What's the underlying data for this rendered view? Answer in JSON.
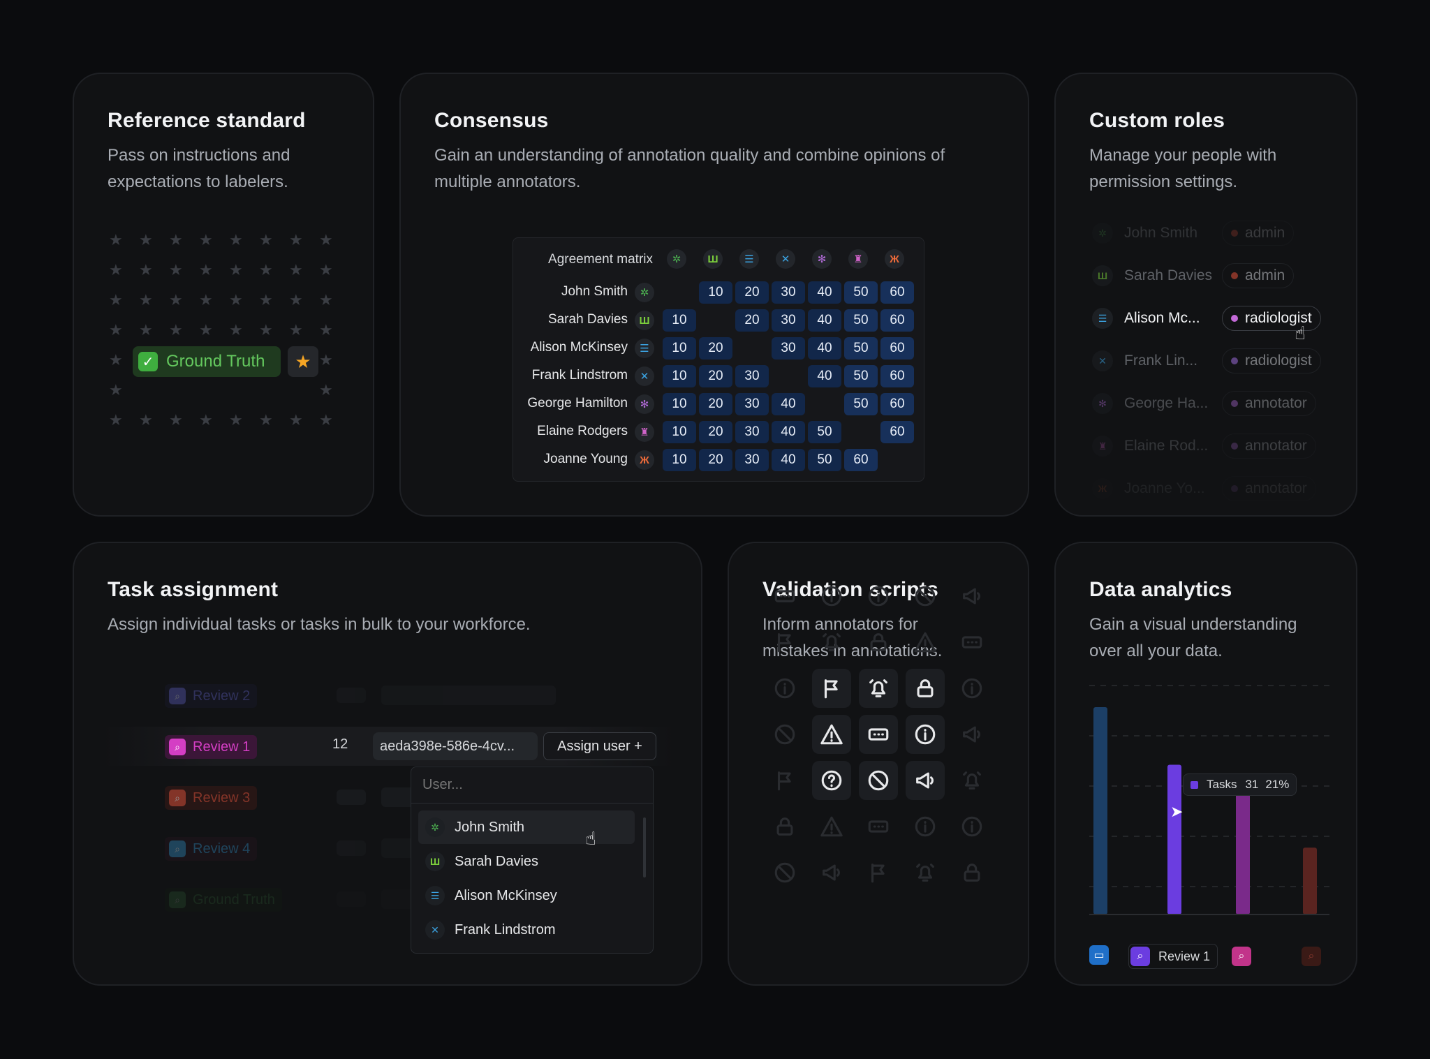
{
  "cards": {
    "reference": {
      "title": "Reference standard",
      "desc_line1": "Pass on instructions and",
      "desc_line2": "expectations to labelers.",
      "ground_truth_label": "Ground Truth"
    },
    "consensus": {
      "title": "Consensus",
      "desc_line1": "Gain an understanding of annotation quality and combine opinions of",
      "desc_line2": "multiple annotators.",
      "matrix_title": "Agreement matrix",
      "rows": [
        {
          "name": "John Smith",
          "color": "#4caf50",
          "glyph": "✲",
          "values": [
            "",
            "10",
            "20",
            "30",
            "40",
            "50",
            "60"
          ]
        },
        {
          "name": "Sarah Davies",
          "color": "#7ccf3c",
          "glyph": "Ш",
          "values": [
            "10",
            "",
            "20",
            "30",
            "40",
            "50",
            "60"
          ]
        },
        {
          "name": "Alison McKinsey",
          "color": "#3ba2e0",
          "glyph": "☰",
          "values": [
            "10",
            "20",
            "",
            "30",
            "40",
            "50",
            "60"
          ]
        },
        {
          "name": "Frank Lindstrom",
          "color": "#3ba2e0",
          "glyph": "✕",
          "values": [
            "10",
            "20",
            "30",
            "",
            "40",
            "50",
            "60"
          ]
        },
        {
          "name": "George Hamilton",
          "color": "#b06ad6",
          "glyph": "✻",
          "values": [
            "10",
            "20",
            "30",
            "40",
            "",
            "50",
            "60"
          ]
        },
        {
          "name": "Elaine Rodgers",
          "color": "#cf63c8",
          "glyph": "♜",
          "values": [
            "10",
            "20",
            "30",
            "40",
            "50",
            "",
            "60"
          ]
        },
        {
          "name": "Joanne Young",
          "color": "#ef6b3a",
          "glyph": "Ж",
          "values": [
            "10",
            "20",
            "30",
            "40",
            "50",
            "60",
            ""
          ]
        }
      ]
    },
    "roles": {
      "title": "Custom roles",
      "desc_line1": "Manage your people with",
      "desc_line2": "permission settings.",
      "rows": [
        {
          "name": "John Smith",
          "role": "admin",
          "dot": "#e0503a",
          "icon_color": "#4caf50",
          "glyph": "✲"
        },
        {
          "name": "Sarah Davies",
          "role": "admin",
          "dot": "#e0503a",
          "icon_color": "#7ccf3c",
          "glyph": "Ш"
        },
        {
          "name": "Alison Mc...",
          "role": "radiologist",
          "dot": "#c46ad8",
          "icon_color": "#3ba2e0",
          "glyph": "☰"
        },
        {
          "name": "Frank Lin...",
          "role": "radiologist",
          "dot": "#9a6ad8",
          "icon_color": "#3ba2e0",
          "glyph": "✕"
        },
        {
          "name": "George Ha...",
          "role": "annotator",
          "dot": "#b06ad6",
          "icon_color": "#b06ad6",
          "glyph": "✻"
        },
        {
          "name": "Elaine Rod...",
          "role": "annotator",
          "dot": "#b06ad6",
          "icon_color": "#cf63c8",
          "glyph": "♜"
        },
        {
          "name": "Joanne Yo...",
          "role": "annotator",
          "dot": "#b06ad6",
          "icon_color": "#ef6b3a",
          "glyph": "Ж"
        }
      ]
    },
    "tasks": {
      "title": "Task assignment",
      "desc": "Assign individual tasks or tasks in bulk to your workforce.",
      "rows": [
        {
          "label": "Review 2",
          "color": "#6a6ddf",
          "bg": "#1b1c33"
        },
        {
          "label": "Review 1",
          "color": "#d43ec4",
          "bg": "#3b1638"
        },
        {
          "label": "Review 3",
          "color": "#e0503a",
          "bg": "#3a1a16"
        },
        {
          "label": "Review 4",
          "color": "#3ba2e0",
          "bg": "#2a1620"
        },
        {
          "label": "Ground Truth",
          "color": "#4caf50",
          "bg": "#15260f"
        }
      ],
      "count": "12",
      "task_id": "aeda398e-586e-4cv...",
      "assign_label": "Assign user  +",
      "user_placeholder": "User...",
      "users": [
        {
          "name": "John Smith",
          "color": "#4caf50",
          "glyph": "✲"
        },
        {
          "name": "Sarah Davies",
          "color": "#7ccf3c",
          "glyph": "Ш"
        },
        {
          "name": "Alison McKinsey",
          "color": "#3ba2e0",
          "glyph": "☰"
        },
        {
          "name": "Frank Lindstrom",
          "color": "#3ba2e0",
          "glyph": "✕"
        }
      ]
    },
    "validation": {
      "title": "Validation scripts",
      "desc_line1": "Inform annotators for",
      "desc_line2": "mistakes in annotations."
    },
    "analytics": {
      "title": "Data analytics",
      "desc_line1": "Gain a visual understanding",
      "desc_line2": "over all your data.",
      "tooltip_series": "Tasks",
      "tooltip_value": "31",
      "tooltip_pct": "21%",
      "legend_label": "Review 1"
    }
  },
  "chart_data": {
    "type": "bar",
    "series": [
      {
        "values": [
          0.9,
          0.0,
          0.0,
          0.0
        ],
        "color": "#1c3f66"
      },
      {
        "values": [
          0.0,
          0.65,
          0.0,
          0.0
        ],
        "color": "#6b3de0"
      },
      {
        "values": [
          0.0,
          0.0,
          0.54,
          0.0
        ],
        "color": "#7a2a8a"
      },
      {
        "values": [
          0.0,
          0.0,
          0.0,
          0.29
        ],
        "color": "#5a2420"
      }
    ],
    "grid": true
  }
}
